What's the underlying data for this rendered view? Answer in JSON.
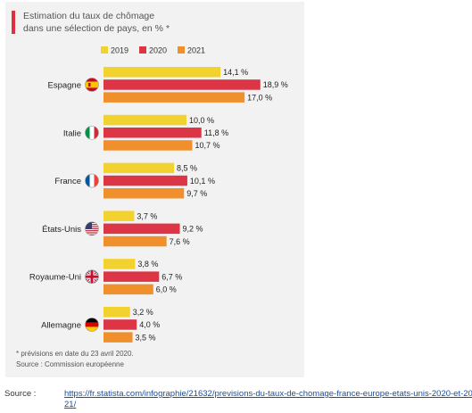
{
  "chart_data": {
    "type": "bar",
    "orientation": "horizontal",
    "title": "Estimation du taux de chômage dans une sélection de pays, en % *",
    "title_lines": [
      "Estimation du taux de chômage",
      "dans une sélection de pays, en % *"
    ],
    "categories": [
      "Espagne",
      "Italie",
      "France",
      "États-Unis",
      "Royaume-Uni",
      "Allemagne"
    ],
    "series": [
      {
        "name": "2019",
        "color": "#f2d22e",
        "values": [
          14.1,
          10.0,
          8.5,
          3.7,
          3.8,
          3.2
        ],
        "labels": [
          "14,1 %",
          "10,0 %",
          "8,5 %",
          "3,7 %",
          "3,8 %",
          "3,2 %"
        ]
      },
      {
        "name": "2020",
        "color": "#dc3545",
        "values": [
          18.9,
          11.8,
          10.1,
          9.2,
          6.7,
          4.0
        ],
        "labels": [
          "18,9 %",
          "11,8 %",
          "10,1 %",
          "9,2 %",
          "6,7 %",
          "4,0 %"
        ]
      },
      {
        "name": "2021",
        "color": "#f0902c",
        "values": [
          17.0,
          10.7,
          9.7,
          7.6,
          6.0,
          3.5
        ],
        "labels": [
          "17,0 %",
          "10,7 %",
          "9,7 %",
          "7,6 %",
          "6,0 %",
          "3,5 %"
        ]
      }
    ],
    "legend_position": "top",
    "grid": false,
    "xlim": [
      0,
      20
    ],
    "flags": [
      "spain-flag-icon",
      "italy-flag-icon",
      "france-flag-icon",
      "usa-flag-icon",
      "uk-flag-icon",
      "germany-flag-icon"
    ]
  },
  "footnote": "* prévisions en date du 23 avril 2020.",
  "source_line": "Source : Commission européenne",
  "page_source": {
    "label": "Source :",
    "url": "https://fr.statista.com/infographie/21632/previsions-du-taux-de-chomage-france-europe-etats-unis-2020-et-2021/"
  }
}
